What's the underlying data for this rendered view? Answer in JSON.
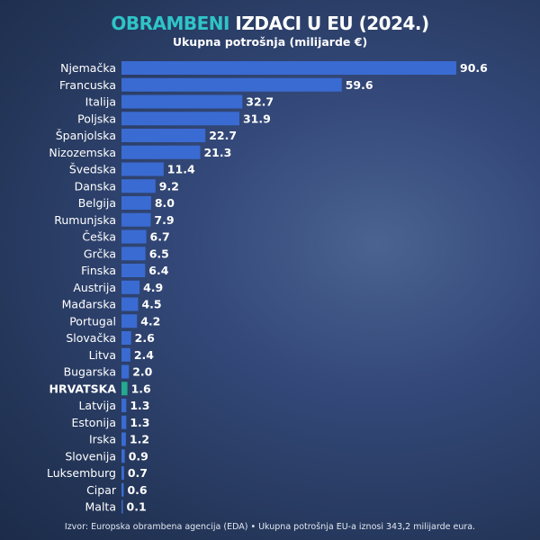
{
  "colors": {
    "bar": "#3a6bd2",
    "highlight": "#25a98f",
    "title_accent": "#2fc4c8",
    "text": "#ffffff"
  },
  "chart_data": {
    "type": "bar",
    "orientation": "horizontal",
    "title_accent": "OBRAMBENI",
    "title_rest": " IZDACI U EU (2024.)",
    "subtitle": "Ukupna potrošnja (milijarde €)",
    "categories": [
      "Njemačka",
      "Francuska",
      "Italija",
      "Poljska",
      "Španjolska",
      "Nizozemska",
      "Švedska",
      "Danska",
      "Belgija",
      "Rumunjska",
      "Češka",
      "Grčka",
      "Finska",
      "Austrija",
      "Mađarska",
      "Portugal",
      "Slovačka",
      "Litva",
      "Bugarska",
      "HRVATSKA",
      "Latvija",
      "Estonija",
      "Irska",
      "Slovenija",
      "Luksemburg",
      "Cipar",
      "Malta"
    ],
    "values": [
      90.6,
      59.6,
      32.7,
      31.9,
      22.7,
      21.3,
      11.4,
      9.2,
      8.0,
      7.9,
      6.7,
      6.5,
      6.4,
      4.9,
      4.5,
      4.2,
      2.6,
      2.4,
      2.0,
      1.6,
      1.3,
      1.3,
      1.2,
      0.9,
      0.7,
      0.6,
      0.1
    ],
    "highlight": "HRVATSKA",
    "source": "Izvor: Europska obrambena agencija (EDA) • Ukupna potrošnja EU-a iznosi 343,2 milijarde eura."
  }
}
